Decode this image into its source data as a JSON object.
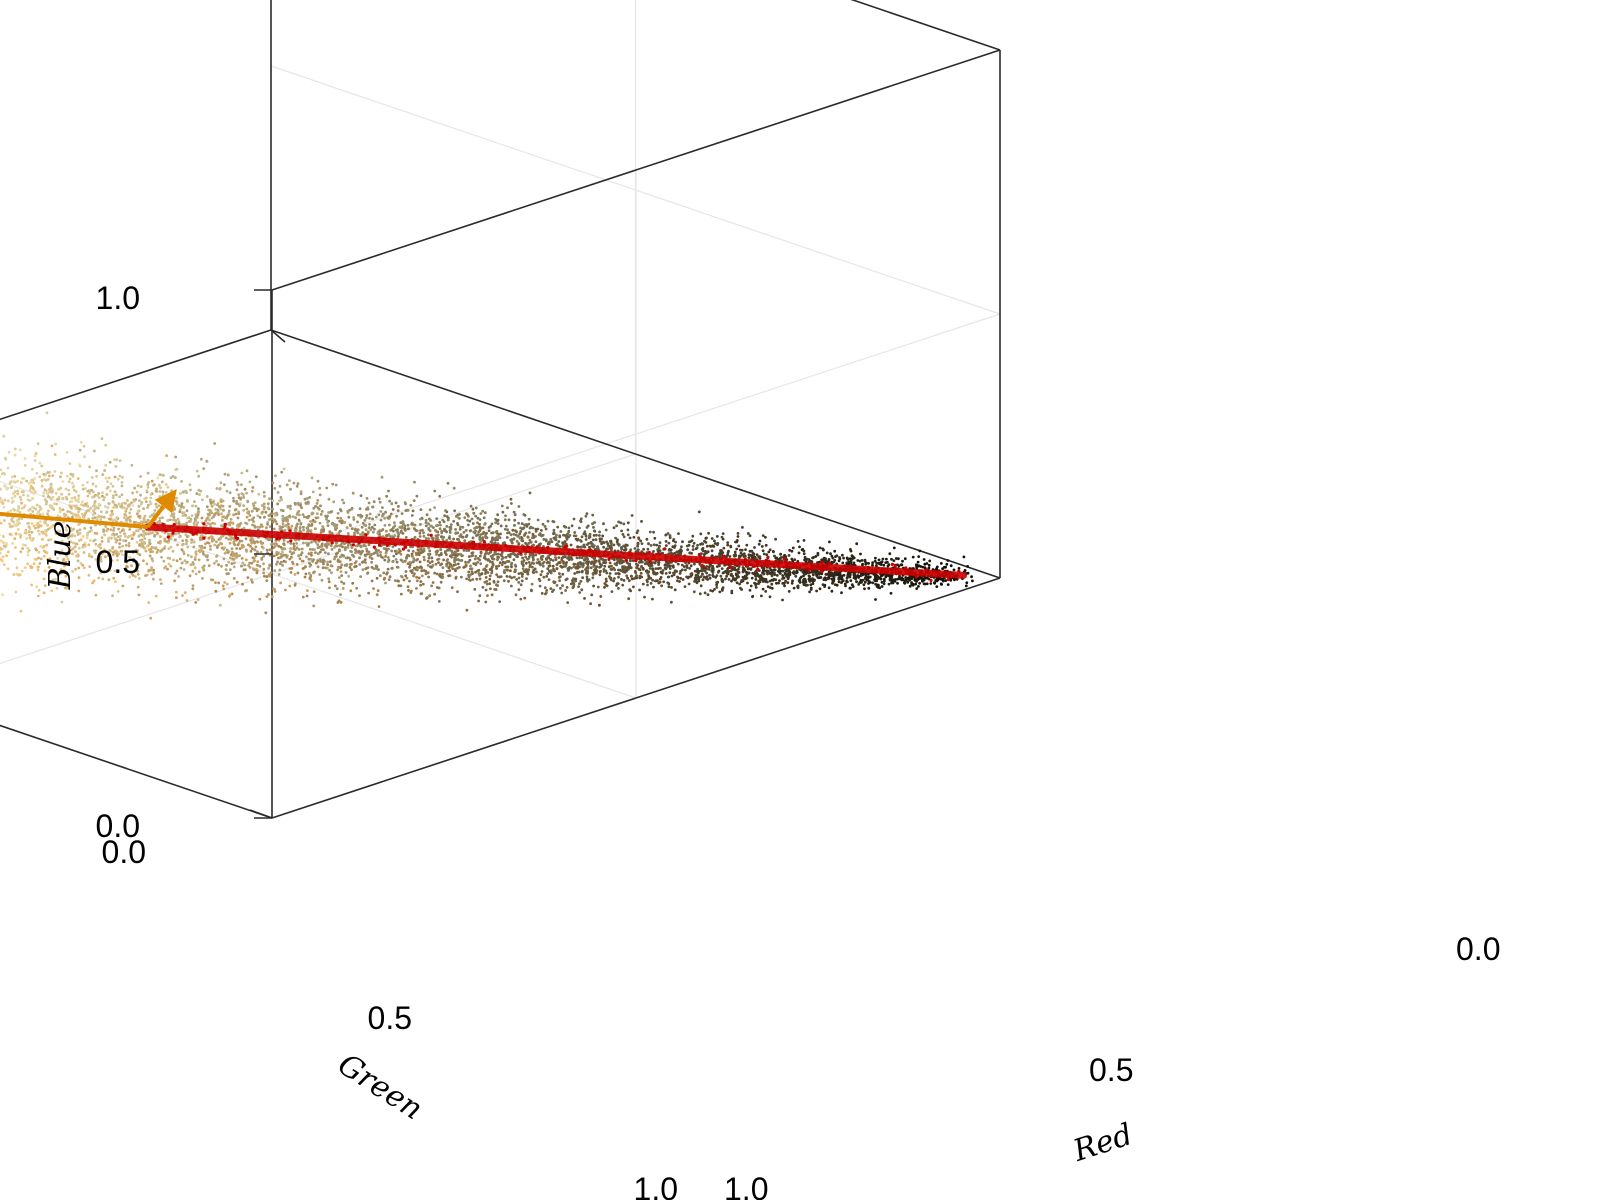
{
  "chart_data": {
    "type": "scatter3d",
    "title": "",
    "axes": {
      "x": {
        "label": "Red",
        "lim": [
          0,
          1
        ],
        "ticks": [
          0.0,
          0.5,
          1.0
        ],
        "tick_labels": [
          "0.0",
          "0.5",
          "1.0"
        ]
      },
      "y": {
        "label": "Green",
        "lim": [
          0,
          1
        ],
        "ticks": [
          0.0,
          0.5,
          1.0
        ],
        "tick_labels": [
          "0.0",
          "0.5",
          "1.0"
        ]
      },
      "z": {
        "label": "Blue",
        "lim": [
          0,
          1
        ],
        "ticks": [
          0.0,
          0.5,
          1.0
        ],
        "tick_labels": [
          "0.0",
          "0.5",
          "1.0"
        ]
      }
    },
    "grid": true,
    "legend": "none",
    "point_cloud": {
      "description": "image pixel colors plotted in RGB space",
      "count_estimate": 6000,
      "dark_end_rgb": [
        0.05,
        0.05,
        0.02
      ],
      "light_end_rgb": [
        0.93,
        0.87,
        0.66
      ],
      "colored_by": "pixel color"
    },
    "principal_line": {
      "color": "#cc0000",
      "from": [
        0.02,
        0.03,
        0.0
      ],
      "to": [
        0.62,
        0.55,
        0.12
      ]
    },
    "arrows": {
      "color": "#e08a00",
      "origin": [
        0.62,
        0.55,
        0.12
      ],
      "vectors": [
        {
          "to": [
            0.74,
            0.75,
            0.12
          ]
        },
        {
          "to": [
            0.63,
            0.5,
            0.22
          ]
        }
      ]
    }
  },
  "colors": {
    "axis": "#2a2a2a",
    "grid": "#e6e6e6",
    "line": "#cc0000",
    "arrow": "#e08a00"
  }
}
